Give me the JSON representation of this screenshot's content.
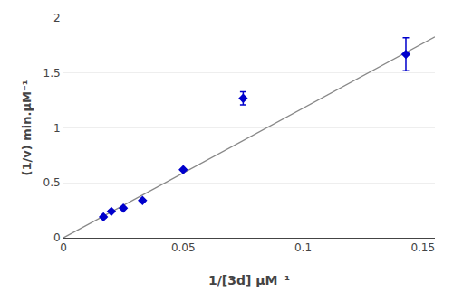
{
  "chart_data": {
    "type": "scatter",
    "xlabel": "1/[3d] μM⁻¹",
    "ylabel": "(1/v) min.μM⁻¹",
    "series": [
      {
        "type": "line",
        "color": "#888888",
        "x": [
          0,
          0.155
        ],
        "values": [
          0,
          1.829
        ]
      },
      {
        "type": "scatter",
        "marker": "diamond",
        "color": "#0000CC",
        "x": [
          0.0167,
          0.02,
          0.025,
          0.033,
          0.05,
          0.075,
          0.1429
        ],
        "values": [
          0.19,
          0.24,
          0.27,
          0.34,
          0.62,
          1.27,
          1.67
        ],
        "y_err": [
          0.006,
          0.006,
          0.006,
          0.006,
          0.006,
          0.06,
          0.15
        ]
      }
    ],
    "xlim": [
      0,
      0.155
    ],
    "ylim": [
      0,
      2
    ],
    "xticks": [
      0,
      0.05,
      0.1,
      0.15
    ],
    "yticks": [
      0,
      0.5,
      1,
      1.5,
      2
    ],
    "grid": "y"
  }
}
